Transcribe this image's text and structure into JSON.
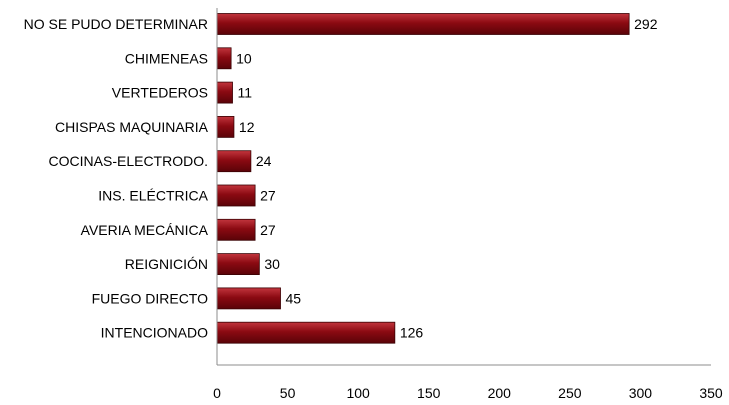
{
  "chart_data": {
    "type": "bar",
    "orientation": "horizontal",
    "categories": [
      "NO SE PUDO DETERMINAR",
      "CHIMENEAS",
      "VERTEDEROS",
      "CHISPAS MAQUINARIA",
      "COCINAS-ELECTRODO.",
      "INS. ELÉCTRICA",
      "AVERIA MECÁNICA",
      "REIGNICIÓN",
      "FUEGO DIRECTO",
      "INTENCIONADO"
    ],
    "values": [
      292,
      10,
      11,
      12,
      24,
      27,
      27,
      30,
      45,
      126
    ],
    "value_labels": [
      "292",
      "10",
      "11",
      "12",
      "24",
      "27",
      "27",
      "30",
      "45",
      "126"
    ],
    "x_ticks": [
      "0",
      "50",
      "100",
      "150",
      "200",
      "250",
      "300",
      "350"
    ],
    "xlim": [
      0,
      350
    ],
    "title": "",
    "xlabel": "",
    "ylabel": "",
    "grid": false,
    "legend": "none",
    "bar_color": "#8b0a12",
    "bar_color_light": "#c2353d",
    "bar_color_dark": "#5a0308",
    "axis_color": "#8c8c8c"
  }
}
